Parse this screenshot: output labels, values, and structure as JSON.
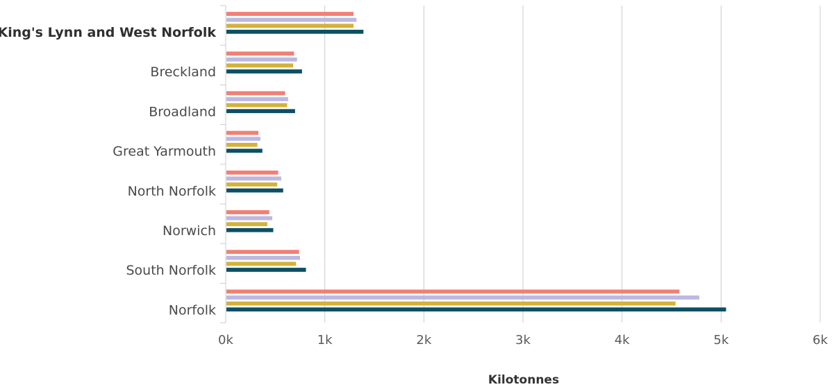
{
  "chart_data": {
    "type": "bar",
    "orientation": "horizontal",
    "categories": [
      "King's Lynn and West Norfolk",
      "Breckland",
      "Broadland",
      "Great Yarmouth",
      "North Norfolk",
      "Norwich",
      "South Norfolk",
      "Norfolk"
    ],
    "highlighted_category": "King's Lynn and West Norfolk",
    "series": [
      {
        "color": "#f08075",
        "values": [
          1290,
          690,
          600,
          330,
          530,
          440,
          740,
          4580
        ]
      },
      {
        "color": "#bdb8e0",
        "values": [
          1320,
          720,
          630,
          350,
          560,
          470,
          750,
          4780
        ]
      },
      {
        "color": "#d4b23a",
        "values": [
          1290,
          680,
          620,
          320,
          520,
          420,
          710,
          4540
        ]
      },
      {
        "color": "#0d4f63",
        "values": [
          1390,
          770,
          700,
          370,
          580,
          480,
          810,
          5050
        ]
      }
    ],
    "xlim": [
      0,
      6000
    ],
    "x_ticks": [
      0,
      1000,
      2000,
      3000,
      4000,
      5000,
      6000
    ],
    "x_tick_labels": [
      "0k",
      "1k",
      "2k",
      "3k",
      "4k",
      "5k",
      "6k"
    ],
    "xlabel": "Kilotonnes",
    "ylabel": "",
    "title": "",
    "grid": "vertical",
    "legend": "none"
  }
}
